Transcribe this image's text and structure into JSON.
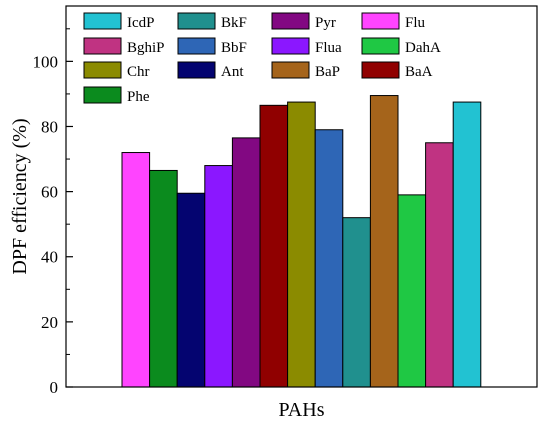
{
  "chart_data": {
    "type": "bar",
    "title": "",
    "xlabel": "PAHs",
    "ylabel": "DPF efficiency (%)",
    "ylim": [
      0,
      117
    ],
    "yticks": [
      0,
      20,
      40,
      60,
      80,
      100
    ],
    "grid": false,
    "legend_placement": "top",
    "series": [
      {
        "name": "Flu",
        "value": 72,
        "color": "#ff44ff"
      },
      {
        "name": "Phe",
        "value": 66.5,
        "color": "#0b8b1e"
      },
      {
        "name": "Ant",
        "value": 59.5,
        "color": "#040470"
      },
      {
        "name": "Flua",
        "value": 68,
        "color": "#8b17ff"
      },
      {
        "name": "Pyr",
        "value": 76.5,
        "color": "#820882"
      },
      {
        "name": "BaA",
        "value": 86.5,
        "color": "#900000"
      },
      {
        "name": "Chr",
        "value": 87.5,
        "color": "#8b8b00"
      },
      {
        "name": "BbF",
        "value": 79,
        "color": "#2e66b6"
      },
      {
        "name": "BkF",
        "value": 52,
        "color": "#20908e"
      },
      {
        "name": "BaP",
        "value": 89.5,
        "color": "#a5641b"
      },
      {
        "name": "DahA",
        "value": 59,
        "color": "#1fc844"
      },
      {
        "name": "BghiP",
        "value": 75,
        "color": "#c03382"
      },
      {
        "name": "IcdP",
        "value": 87.5,
        "color": "#22c2d2"
      }
    ],
    "legend_order": [
      "IcdP",
      "BkF",
      "Pyr",
      "Flu",
      "BghiP",
      "BbF",
      "Flua",
      "DahA",
      "Chr",
      "Ant",
      "BaP",
      "BaA",
      "Phe"
    ]
  }
}
